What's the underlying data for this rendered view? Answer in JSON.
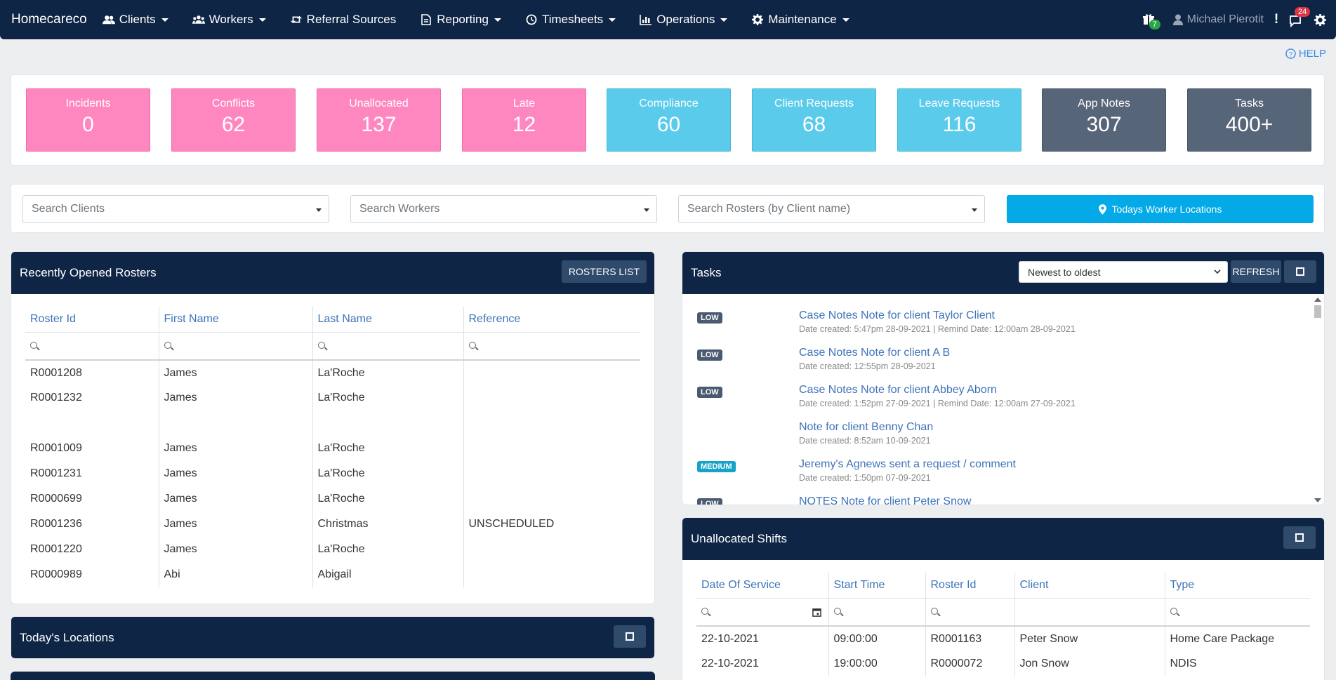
{
  "brand": "Homecareco",
  "nav": [
    {
      "label": "Clients",
      "icon": "users-icon",
      "caret": true
    },
    {
      "label": "Workers",
      "icon": "workers-icon",
      "caret": true
    },
    {
      "label": "Referral Sources",
      "icon": "retweet-icon",
      "caret": false
    },
    {
      "label": "Reporting",
      "icon": "file-icon",
      "caret": true
    },
    {
      "label": "Timesheets",
      "icon": "clock-icon",
      "caret": true
    },
    {
      "label": "Operations",
      "icon": "bar-chart-icon",
      "caret": true
    },
    {
      "label": "Maintenance",
      "icon": "gear-icon",
      "caret": true
    }
  ],
  "header_right": {
    "gift_badge": "7",
    "user_name": "Michael Pierotit",
    "messages_badge": "24"
  },
  "help_label": "HELP",
  "stats": [
    {
      "label": "Incidents",
      "value": "0",
      "color": "pink"
    },
    {
      "label": "Conflicts",
      "value": "62",
      "color": "pink"
    },
    {
      "label": "Unallocated",
      "value": "137",
      "color": "pink"
    },
    {
      "label": "Late",
      "value": "12",
      "color": "pink"
    },
    {
      "label": "Compliance",
      "value": "60",
      "color": "cyan"
    },
    {
      "label": "Client Requests",
      "value": "68",
      "color": "cyan"
    },
    {
      "label": "Leave Requests",
      "value": "116",
      "color": "cyan"
    },
    {
      "label": "App Notes",
      "value": "307",
      "color": "slate"
    },
    {
      "label": "Tasks",
      "value": "400+",
      "color": "slate"
    }
  ],
  "search": {
    "clients": "Search Clients",
    "workers": "Search Workers",
    "rosters": "Search Rosters (by Client name)",
    "locations_button": "Todays Worker Locations"
  },
  "rosters": {
    "title": "Recently Opened Rosters",
    "list_button": "ROSTERS LIST",
    "columns": [
      "Roster Id",
      "First Name",
      "Last Name",
      "Reference"
    ],
    "rows": [
      [
        "R0001208",
        "James",
        "La'Roche",
        ""
      ],
      [
        "R0001232",
        "James",
        "La'Roche",
        ""
      ],
      [
        "",
        "",
        "",
        ""
      ],
      [
        "R0001009",
        "James",
        "La'Roche",
        ""
      ],
      [
        "R0001231",
        "James",
        "La'Roche",
        ""
      ],
      [
        "R0000699",
        "James",
        "La'Roche",
        ""
      ],
      [
        "R0001236",
        "James",
        "Christmas",
        "UNSCHEDULED"
      ],
      [
        "R0001220",
        "James",
        "La'Roche",
        ""
      ],
      [
        "R0000989",
        "Abi",
        "Abigail",
        ""
      ]
    ]
  },
  "locations": {
    "title": "Today's Locations"
  },
  "tasks": {
    "title": "Tasks",
    "sort_value": "Newest to oldest",
    "refresh_button": "REFRESH",
    "items": [
      {
        "priority": "LOW",
        "title": "Case Notes Note for client Taylor Client",
        "meta": "Date created: 5:47pm 28-09-2021 | Remind Date: 12:00am 28-09-2021"
      },
      {
        "priority": "LOW",
        "title": "Case Notes Note for client A B",
        "meta": "Date created: 12:55pm 28-09-2021"
      },
      {
        "priority": "LOW",
        "title": "Case Notes Note for client Abbey Aborn",
        "meta": "Date created: 1:52pm 27-09-2021 | Remind Date: 12:00am 27-09-2021"
      },
      {
        "priority": "",
        "title": "Note for client Benny Chan",
        "meta": "Date created: 8:52am 10-09-2021"
      },
      {
        "priority": "MEDIUM",
        "title": "Jeremy's Agnews sent a request / comment",
        "meta": "Date created: 1:50pm 07-09-2021"
      },
      {
        "priority": "LOW",
        "title": "NOTES Note for client Peter Snow",
        "meta": ""
      }
    ]
  },
  "unallocated": {
    "title": "Unallocated Shifts",
    "columns": [
      "Date Of Service",
      "Start Time",
      "Roster Id",
      "Client",
      "Type"
    ],
    "rows": [
      [
        "22-10-2021",
        "09:00:00",
        "R0001163",
        "Peter Snow",
        "Home Care Package"
      ],
      [
        "22-10-2021",
        "19:00:00",
        "R0000072",
        "Jon Snow",
        "NDIS"
      ]
    ]
  }
}
